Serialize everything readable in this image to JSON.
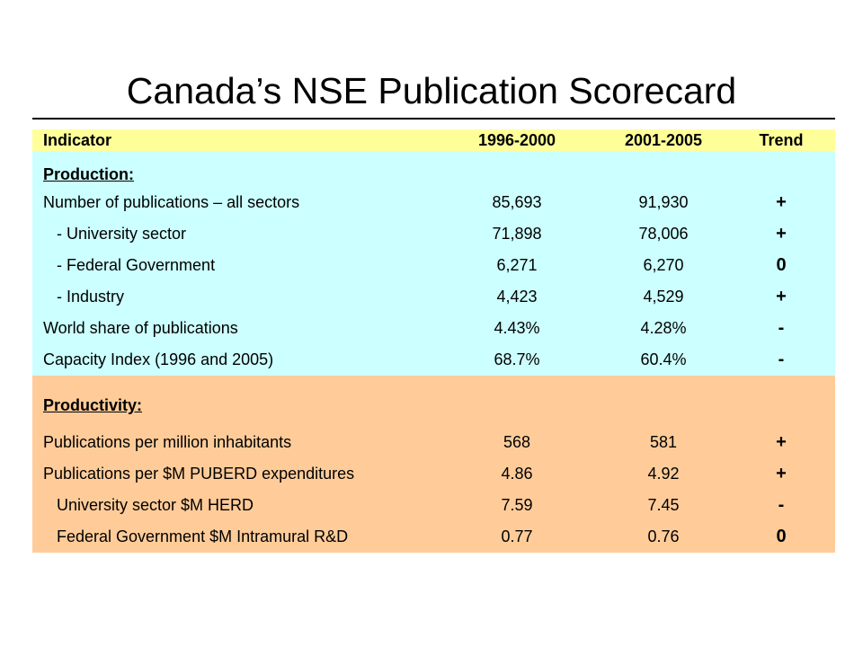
{
  "title": "Canada’s NSE Publication Scorecard",
  "header": {
    "indicator": "Indicator",
    "period1": "1996-2000",
    "period2": "2001-2005",
    "trend": "Trend"
  },
  "sections": [
    {
      "heading": "Production:",
      "rows": [
        {
          "label": "Number of publications – all sectors",
          "v1": "85,693",
          "v2": "91,930",
          "trend": "+"
        },
        {
          "label": "- University sector",
          "v1": "71,898",
          "v2": "78,006",
          "trend": "+"
        },
        {
          "label": "- Federal Government",
          "v1": "6,271",
          "v2": "6,270",
          "trend": "0"
        },
        {
          "label": "- Industry",
          "v1": "4,423",
          "v2": "4,529",
          "trend": "+"
        },
        {
          "label": "World share of publications",
          "v1": "4.43%",
          "v2": "4.28%",
          "trend": "-"
        },
        {
          "label": "Capacity Index (1996 and 2005)",
          "v1": "68.7%",
          "v2": "60.4%",
          "trend": "-"
        }
      ]
    },
    {
      "heading": "Productivity:",
      "rows": [
        {
          "label": "Publications per million inhabitants",
          "v1": "568",
          "v2": "581",
          "trend": "+"
        },
        {
          "label": "Publications per $M PUBERD expenditures",
          "v1": "4.86",
          "v2": "4.92",
          "trend": "+"
        },
        {
          "label": "University sector $M HERD",
          "v1": "7.59",
          "v2": "7.45",
          "trend": "-"
        },
        {
          "label": "Federal Government $M Intramural R&D",
          "v1": "0.77",
          "v2": "0.76",
          "trend": "0"
        }
      ]
    }
  ],
  "colors": {
    "header_bg": "#ffff99",
    "production_bg": "#ccffff",
    "productivity_bg": "#ffcc99"
  }
}
